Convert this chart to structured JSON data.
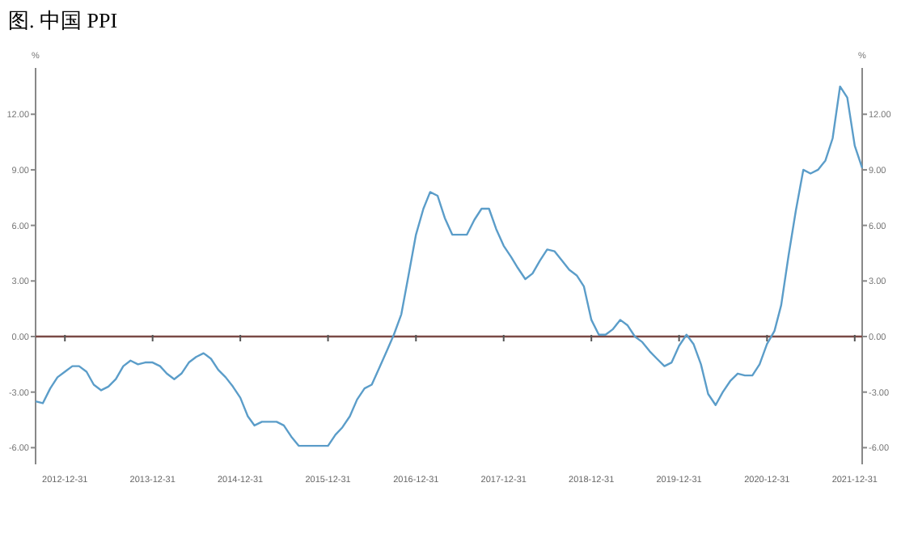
{
  "chart_data": {
    "type": "line",
    "title": "图. 中国 PPI",
    "ylabel": "%",
    "y2label": "%",
    "ylim": [
      -6.9,
      14.5
    ],
    "yticks": [
      {
        "value": -6,
        "label": "-6.00"
      },
      {
        "value": -3,
        "label": "-3.00"
      },
      {
        "value": 0,
        "label": "0.00"
      },
      {
        "value": 3,
        "label": "3.00"
      },
      {
        "value": 6,
        "label": "6.00"
      },
      {
        "value": 9,
        "label": "9.00"
      },
      {
        "value": 12,
        "label": "12.00"
      }
    ],
    "y2lim": [
      -6.9,
      14.5
    ],
    "y2ticks": [
      {
        "value": -6,
        "label": "-6.00"
      },
      {
        "value": -3,
        "label": "-3.00"
      },
      {
        "value": 0,
        "label": "0.00"
      },
      {
        "value": 3,
        "label": "3.00"
      },
      {
        "value": 6,
        "label": "6.00"
      },
      {
        "value": 9,
        "label": "9.00"
      },
      {
        "value": 12,
        "label": "12.00"
      }
    ],
    "xlim": [
      "2012-08-31",
      "2022-01-31"
    ],
    "xticks": [
      "2012-12-31",
      "2013-12-31",
      "2014-12-31",
      "2015-12-31",
      "2016-12-31",
      "2017-12-31",
      "2018-12-31",
      "2019-12-31",
      "2020-12-31",
      "2021-12-31"
    ],
    "x": [
      "2012-08-31",
      "2012-09-30",
      "2012-10-31",
      "2012-11-30",
      "2012-12-31",
      "2013-01-31",
      "2013-02-28",
      "2013-03-31",
      "2013-04-30",
      "2013-05-31",
      "2013-06-30",
      "2013-07-31",
      "2013-08-31",
      "2013-09-30",
      "2013-10-31",
      "2013-11-30",
      "2013-12-31",
      "2014-01-31",
      "2014-02-28",
      "2014-03-31",
      "2014-04-30",
      "2014-05-31",
      "2014-06-30",
      "2014-07-31",
      "2014-08-31",
      "2014-09-30",
      "2014-10-31",
      "2014-11-30",
      "2014-12-31",
      "2015-01-31",
      "2015-02-28",
      "2015-03-31",
      "2015-04-30",
      "2015-05-31",
      "2015-06-30",
      "2015-07-31",
      "2015-08-31",
      "2015-09-30",
      "2015-10-31",
      "2015-11-30",
      "2015-12-31",
      "2016-01-31",
      "2016-02-29",
      "2016-03-31",
      "2016-04-30",
      "2016-05-31",
      "2016-06-30",
      "2016-07-31",
      "2016-08-31",
      "2016-09-30",
      "2016-10-31",
      "2016-11-30",
      "2016-12-31",
      "2017-01-31",
      "2017-02-28",
      "2017-03-31",
      "2017-04-30",
      "2017-05-31",
      "2017-06-30",
      "2017-07-31",
      "2017-08-31",
      "2017-09-30",
      "2017-10-31",
      "2017-11-30",
      "2017-12-31",
      "2018-01-31",
      "2018-02-28",
      "2018-03-31",
      "2018-04-30",
      "2018-05-31",
      "2018-06-30",
      "2018-07-31",
      "2018-08-31",
      "2018-09-30",
      "2018-10-31",
      "2018-11-30",
      "2018-12-31",
      "2019-01-31",
      "2019-02-28",
      "2019-03-31",
      "2019-04-30",
      "2019-05-31",
      "2019-06-30",
      "2019-07-31",
      "2019-08-31",
      "2019-09-30",
      "2019-10-31",
      "2019-11-30",
      "2019-12-31",
      "2020-01-31",
      "2020-02-29",
      "2020-03-31",
      "2020-04-30",
      "2020-05-31",
      "2020-06-30",
      "2020-07-31",
      "2020-08-31",
      "2020-09-30",
      "2020-10-31",
      "2020-11-30",
      "2020-12-31",
      "2021-01-31",
      "2021-02-28",
      "2021-03-31",
      "2021-04-30",
      "2021-05-31",
      "2021-06-30",
      "2021-07-31",
      "2021-08-31",
      "2021-09-30",
      "2021-10-31",
      "2021-11-30",
      "2021-12-31",
      "2022-01-31"
    ],
    "series": [
      {
        "color": "#5b9dc9",
        "values": [
          -3.5,
          -3.6,
          -2.8,
          -2.2,
          -1.9,
          -1.6,
          -1.6,
          -1.9,
          -2.6,
          -2.9,
          -2.7,
          -2.3,
          -1.6,
          -1.3,
          -1.5,
          -1.4,
          -1.4,
          -1.6,
          -2.0,
          -2.3,
          -2.0,
          -1.4,
          -1.1,
          -0.9,
          -1.2,
          -1.8,
          -2.2,
          -2.7,
          -3.3,
          -4.3,
          -4.8,
          -4.6,
          -4.6,
          -4.6,
          -4.8,
          -5.4,
          -5.9,
          -5.9,
          -5.9,
          -5.9,
          -5.9,
          -5.3,
          -4.9,
          -4.3,
          -3.4,
          -2.8,
          -2.6,
          -1.7,
          -0.8,
          0.1,
          1.2,
          3.3,
          5.5,
          6.9,
          7.8,
          7.6,
          6.4,
          5.5,
          5.5,
          5.5,
          6.3,
          6.9,
          6.9,
          5.8,
          4.9,
          4.3,
          3.7,
          3.1,
          3.4,
          4.1,
          4.7,
          4.6,
          4.1,
          3.6,
          3.3,
          2.7,
          0.9,
          0.1,
          0.1,
          0.4,
          0.9,
          0.6,
          0.0,
          -0.3,
          -0.8,
          -1.2,
          -1.6,
          -1.4,
          -0.5,
          0.1,
          -0.4,
          -1.5,
          -3.1,
          -3.7,
          -3.0,
          -2.4,
          -2.0,
          -2.1,
          -2.1,
          -1.5,
          -0.4,
          0.3,
          1.7,
          4.4,
          6.8,
          9.0,
          8.8,
          9.0,
          9.5,
          10.7,
          13.5,
          12.9,
          10.3,
          9.1
        ]
      }
    ],
    "ref_lines": [
      {
        "axis": "y",
        "value": 0,
        "color": "#7a4a46"
      }
    ]
  }
}
